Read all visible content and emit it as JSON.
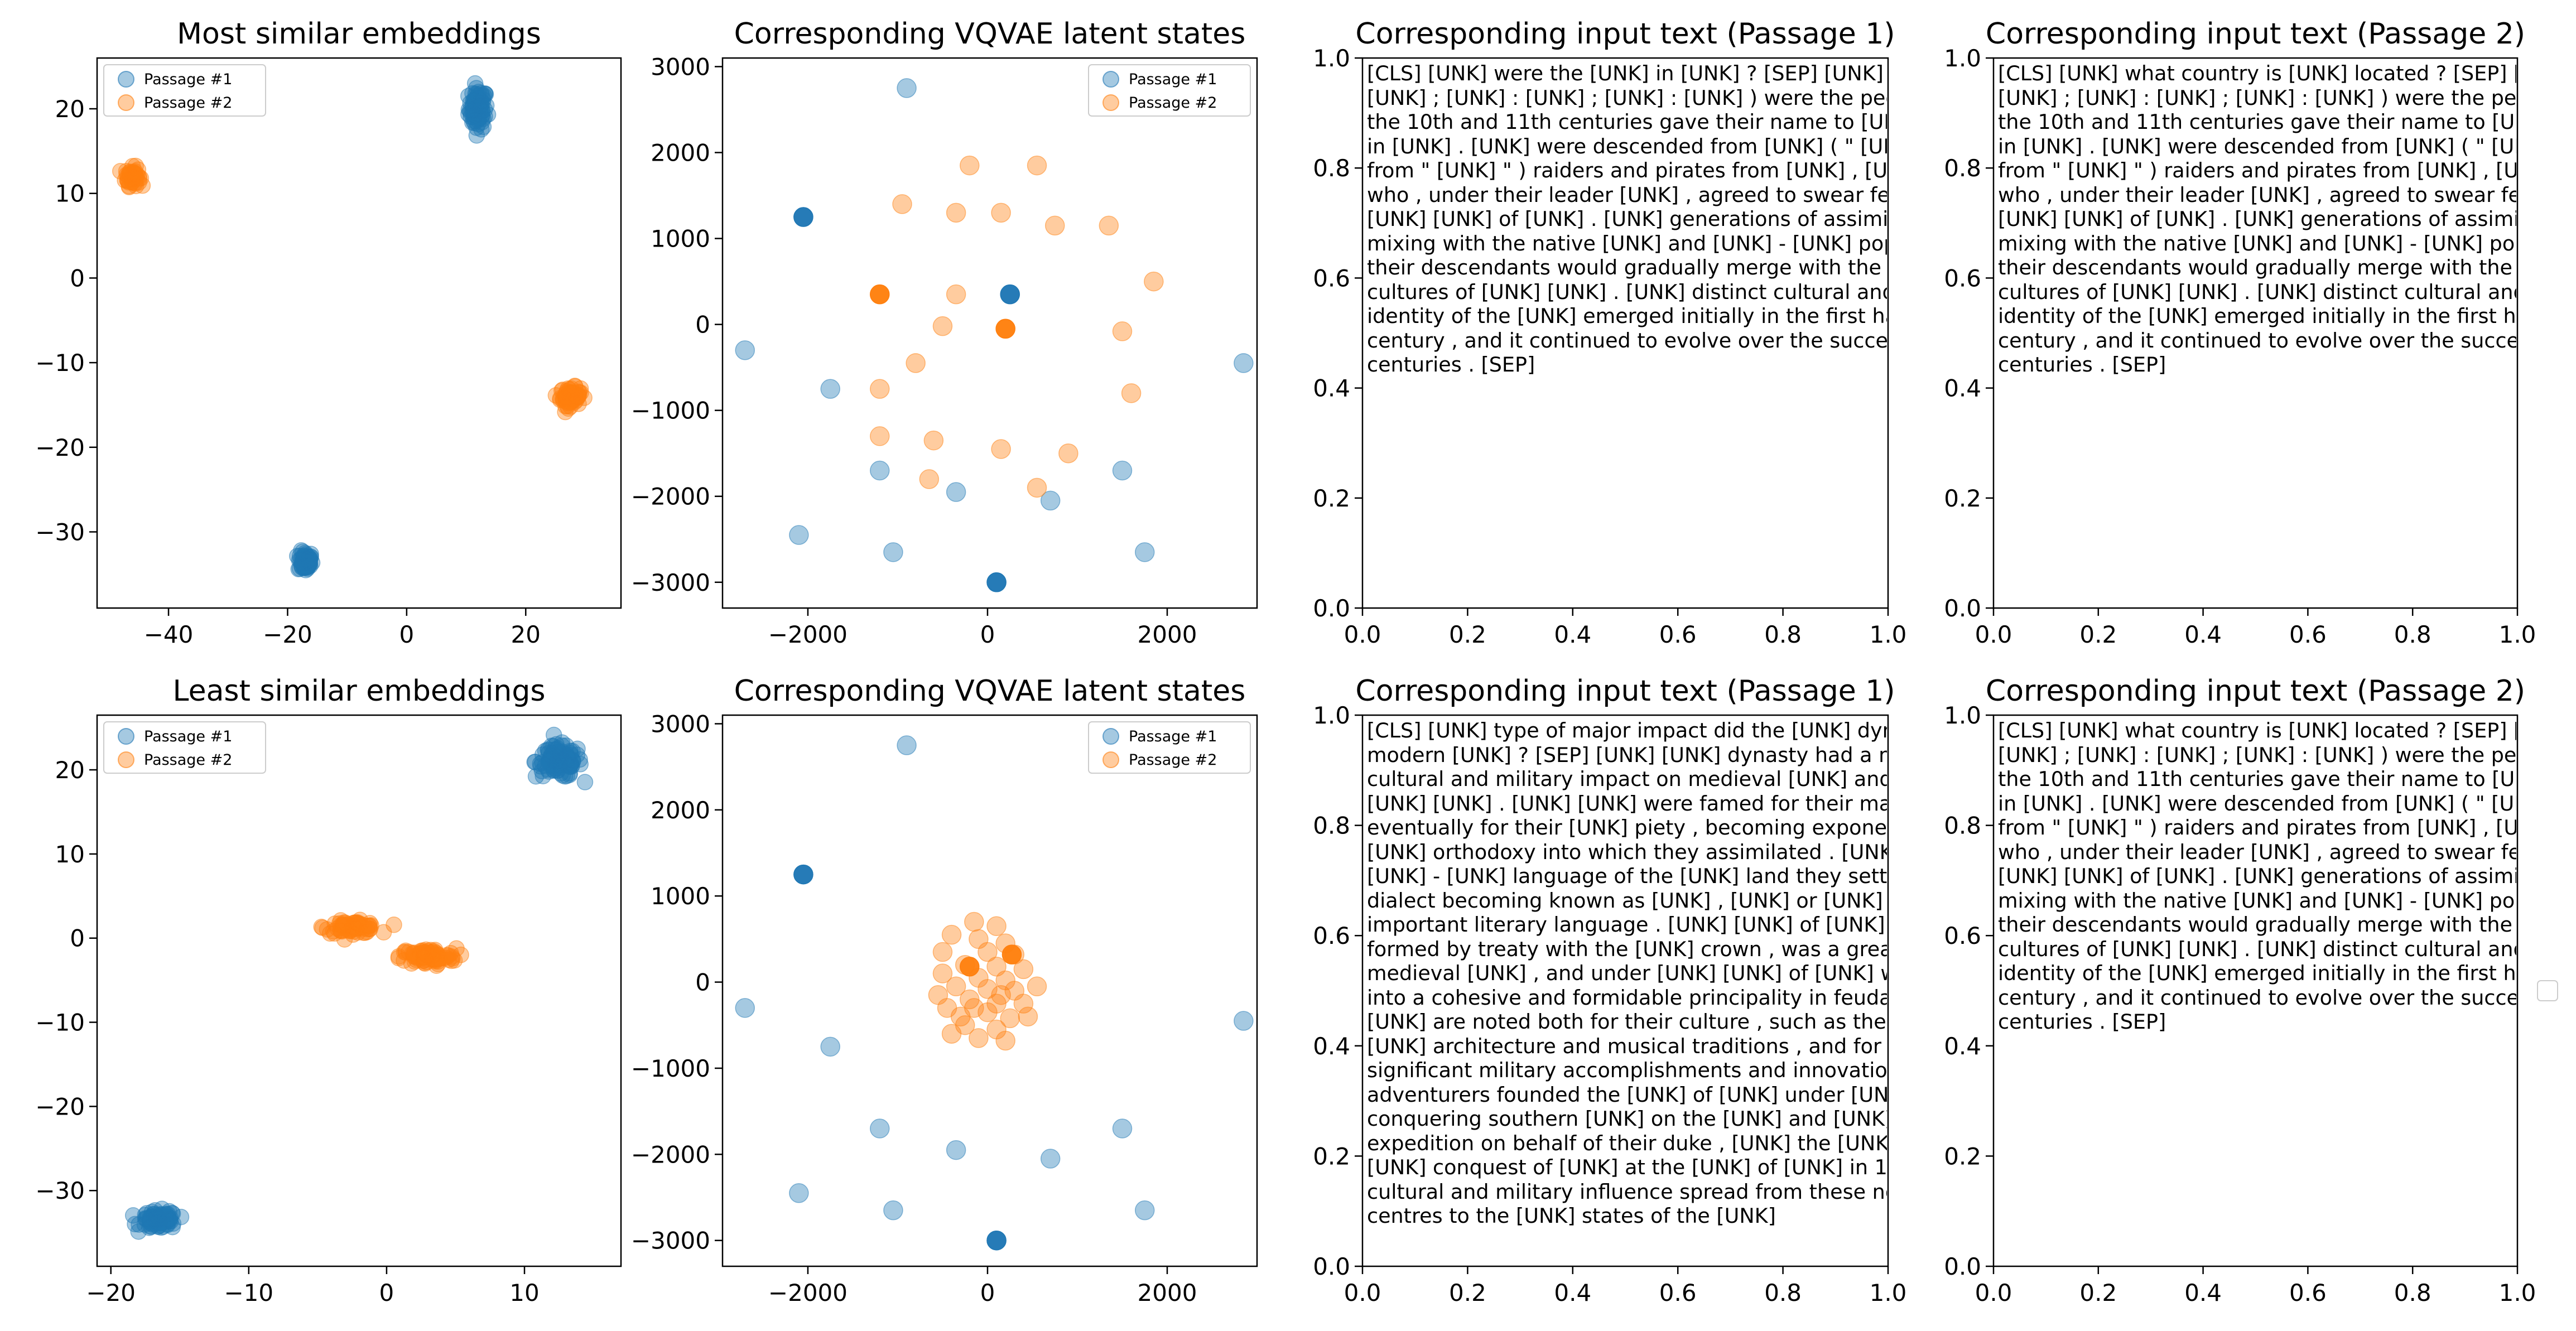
{
  "figure": {
    "colors": {
      "passage1": "#1f77b4",
      "passage2": "#ff7f0e"
    },
    "rows": [
      {
        "embed": {
          "title": "Most similar embeddings",
          "xlim": [
            -52,
            36
          ],
          "ylim": [
            -39,
            26
          ],
          "xticks": [
            -40,
            -20,
            0,
            20
          ],
          "yticks": [
            -30,
            -20,
            -10,
            0,
            10,
            20
          ],
          "legend": [
            "Passage #1",
            "Passage #2"
          ],
          "legend_loc": "upper-left",
          "clusters": [
            {
              "series": 0,
              "cx": 12,
              "cy": 20,
              "sx": 1.3,
              "sy": 2.0,
              "n": 80
            },
            {
              "series": 0,
              "cx": -17,
              "cy": -33.5,
              "sx": 1.0,
              "sy": 1.0,
              "n": 70
            },
            {
              "series": 1,
              "cx": -46,
              "cy": 12,
              "sx": 1.0,
              "sy": 0.9,
              "n": 60
            },
            {
              "series": 1,
              "cx": 27.5,
              "cy": -14,
              "sx": 1.4,
              "sy": 0.9,
              "n": 80
            }
          ]
        },
        "latent": {
          "title": "Corresponding VQVAE latent states",
          "xlim": [
            -2950,
            3000
          ],
          "ylim": [
            -3300,
            3100
          ],
          "xticks": [
            -2000,
            0,
            2000
          ],
          "yticks": [
            -3000,
            -2000,
            -1000,
            0,
            1000,
            2000,
            3000
          ],
          "legend": [
            "Passage #1",
            "Passage #2"
          ],
          "legend_loc": "upper-right",
          "series": [
            {
              "name": "Passage #1",
              "points": [
                [
                  -900,
                  2750
                ],
                [
                  -2050,
                  1250
                ],
                [
                  250,
                  350
                ],
                [
                  -2700,
                  -300
                ],
                [
                  -1750,
                  -750
                ],
                [
                  2850,
                  -450
                ],
                [
                  -1200,
                  -1700
                ],
                [
                  -350,
                  -1950
                ],
                [
                  -2100,
                  -2450
                ],
                [
                  -1050,
                  -2650
                ],
                [
                  100,
                  -3000
                ],
                [
                  700,
                  -2050
                ],
                [
                  1500,
                  -1700
                ],
                [
                  1750,
                  -2650
                ]
              ]
            },
            {
              "name": "Passage #2",
              "points": [
                [
                  -200,
                  1850
                ],
                [
                  550,
                  1850
                ],
                [
                  -950,
                  1400
                ],
                [
                  -350,
                  1300
                ],
                [
                  150,
                  1300
                ],
                [
                  750,
                  1150
                ],
                [
                  1350,
                  1150
                ],
                [
                  -1200,
                  350
                ],
                [
                  -350,
                  350
                ],
                [
                  200,
                  -50
                ],
                [
                  -500,
                  -20
                ],
                [
                  1850,
                  500
                ],
                [
                  1500,
                  -80
                ],
                [
                  -800,
                  -450
                ],
                [
                  -1200,
                  -750
                ],
                [
                  1600,
                  -800
                ],
                [
                  -1200,
                  -1300
                ],
                [
                  -600,
                  -1350
                ],
                [
                  150,
                  -1450
                ],
                [
                  900,
                  -1500
                ],
                [
                  -650,
                  -1800
                ],
                [
                  550,
                  -1900
                ]
              ]
            }
          ],
          "dark_points": [
            {
              "series": 0,
              "x": -2050,
              "y": 1250
            },
            {
              "series": 0,
              "x": 250,
              "y": 350
            },
            {
              "series": 0,
              "x": 100,
              "y": -3000
            },
            {
              "series": 1,
              "x": -1200,
              "y": 350
            },
            {
              "series": 1,
              "x": 200,
              "y": -50
            }
          ]
        },
        "text1": {
          "title": "Corresponding input text (Passage 1)",
          "xlim": [
            0,
            1
          ],
          "ylim": [
            0,
            1
          ],
          "ticks": [
            0.0,
            0.2,
            0.4,
            0.6,
            0.8,
            1.0
          ],
          "text": "[CLS] [UNK] were the [UNK] in [UNK] ? [SEP] [UNK] ( [UNK] : [UNK] ; [UNK] : [UNK] ; [UNK] : [UNK] ) were the people who in the 10th and 11th centuries gave their name to [UNK] , a region in [UNK] . [UNK] were descended from [UNK] ( \" [UNK] \" comes from \" [UNK] \" ) raiders and pirates from [UNK] , [UNK] and [UNK] who , under their leader [UNK] , agreed to swear fealty to [UNK] [UNK] [UNK] of [UNK] . [UNK] generations of assimilation and mixing with the native [UNK] and [UNK] - [UNK] populations , their descendants would gradually merge with the [UNK] - based cultures of [UNK] [UNK] . [UNK] distinct cultural and ethnic identity of the [UNK] emerged initially in the first half of the 10th century , and it continued to evolve over the succeeding centuries . [SEP]"
        },
        "text2": {
          "title": "Corresponding input text (Passage 2)",
          "xlim": [
            0,
            1
          ],
          "ylim": [
            0,
            1
          ],
          "ticks": [
            0.0,
            0.2,
            0.4,
            0.6,
            0.8,
            1.0
          ],
          "text": "[CLS] [UNK] what country is [UNK] located ? [SEP] [UNK] ( [UNK] : [UNK] ; [UNK] : [UNK] ; [UNK] : [UNK] ) were the people who in the 10th and 11th centuries gave their name to [UNK] , a region in [UNK] . [UNK] were descended from [UNK] ( \" [UNK] \" comes from \" [UNK] \" ) raiders and pirates from [UNK] , [UNK] and [UNK] who , under their leader [UNK] , agreed to swear fealty to [UNK] [UNK] [UNK] of [UNK] . [UNK] generations of assimilation and mixing with the native [UNK] and [UNK] - [UNK] populations , their descendants would gradually merge with the [UNK] - based cultures of [UNK] [UNK] . [UNK] distinct cultural and ethnic identity of the [UNK] emerged initially in the first half of the 10th century , and it continued to evolve over the succeeding centuries . [SEP]"
        }
      },
      {
        "embed": {
          "title": "Least similar embeddings",
          "xlim": [
            -21,
            17
          ],
          "ylim": [
            -39,
            26.5
          ],
          "xticks": [
            -20,
            -10,
            0,
            10
          ],
          "yticks": [
            -30,
            -20,
            -10,
            0,
            10,
            20
          ],
          "legend": [
            "Passage #1",
            "Passage #2"
          ],
          "legend_loc": "upper-left",
          "clusters": [
            {
              "series": 0,
              "cx": 12.5,
              "cy": 21,
              "sx": 1.4,
              "sy": 1.6,
              "n": 110
            },
            {
              "series": 0,
              "cx": -16.5,
              "cy": -33.5,
              "sx": 1.1,
              "sy": 0.9,
              "n": 80
            },
            {
              "series": 1,
              "cx": -2.5,
              "cy": 1.3,
              "sx": 1.6,
              "sy": 0.6,
              "n": 70
            },
            {
              "series": 1,
              "cx": 3,
              "cy": -2.2,
              "sx": 1.7,
              "sy": 0.8,
              "n": 90
            }
          ]
        },
        "latent": {
          "title": "Corresponding VQVAE latent states",
          "xlim": [
            -2950,
            3000
          ],
          "ylim": [
            -3300,
            3100
          ],
          "xticks": [
            -2000,
            0,
            2000
          ],
          "yticks": [
            -3000,
            -2000,
            -1000,
            0,
            1000,
            2000,
            3000
          ],
          "legend": [
            "Passage #1",
            "Passage #2"
          ],
          "legend_loc": "upper-right",
          "series": [
            {
              "name": "Passage #1",
              "points": [
                [
                  -900,
                  2750
                ],
                [
                  -2050,
                  1250
                ],
                [
                  -2700,
                  -300
                ],
                [
                  -1750,
                  -750
                ],
                [
                  2850,
                  -450
                ],
                [
                  -1200,
                  -1700
                ],
                [
                  -350,
                  -1950
                ],
                [
                  -2100,
                  -2450
                ],
                [
                  -1050,
                  -2650
                ],
                [
                  100,
                  -3000
                ],
                [
                  700,
                  -2050
                ],
                [
                  1500,
                  -1700
                ],
                [
                  1750,
                  -2650
                ]
              ]
            },
            {
              "name": "Passage #2",
              "points": [
                [
                  -150,
                  700
                ],
                [
                  100,
                  650
                ],
                [
                  -400,
                  550
                ],
                [
                  -100,
                  500
                ],
                [
                  200,
                  450
                ],
                [
                  -500,
                  350
                ],
                [
                  0,
                  350
                ],
                [
                  300,
                  320
                ],
                [
                  -250,
                  200
                ],
                [
                  100,
                  180
                ],
                [
                  400,
                  150
                ],
                [
                  -500,
                  100
                ],
                [
                  -100,
                  50
                ],
                [
                  200,
                  20
                ],
                [
                  -350,
                  -50
                ],
                [
                  0,
                  -80
                ],
                [
                  300,
                  -100
                ],
                [
                  -200,
                  -200
                ],
                [
                  100,
                  -250
                ],
                [
                  400,
                  -250
                ],
                [
                  -450,
                  -300
                ],
                [
                  0,
                  -350
                ],
                [
                  250,
                  -420
                ],
                [
                  -250,
                  -500
                ],
                [
                  100,
                  -550
                ],
                [
                  -400,
                  -600
                ],
                [
                  -100,
                  -650
                ],
                [
                  200,
                  -680
                ],
                [
                  -550,
                  -150
                ],
                [
                  550,
                  -50
                ],
                [
                  450,
                  -400
                ],
                [
                  -300,
                  -400
                ],
                [
                  150,
                  -150
                ],
                [
                  -150,
                  -300
                ]
              ]
            }
          ],
          "dark_points": [
            {
              "series": 0,
              "x": -2050,
              "y": 1250
            },
            {
              "series": 0,
              "x": 100,
              "y": -3000
            },
            {
              "series": 1,
              "x": -200,
              "y": 180
            },
            {
              "series": 1,
              "x": 270,
              "y": 320
            }
          ]
        },
        "text1": {
          "title": "Corresponding input text (Passage 1)",
          "xlim": [
            0,
            1
          ],
          "ylim": [
            0,
            1
          ],
          "ticks": [
            0.0,
            0.2,
            0.4,
            0.6,
            0.8,
            1.0
          ],
          "text": "[CLS] [UNK] type of major impact did the [UNK] dynasty have on modern [UNK] ? [SEP] [UNK] [UNK] dynasty had a major political , cultural and military impact on medieval [UNK] and even the [UNK] [UNK] . [UNK] [UNK] were famed for their martial spirit and eventually for their [UNK] piety , becoming exponents of the [UNK] orthodoxy into which they assimilated . [UNK] adopted the [UNK] - [UNK] language of the [UNK] land they settled , their dialect becoming known as [UNK] , [UNK] or [UNK] [UNK] , an important literary language . [UNK] [UNK] of [UNK] , which they formed by treaty with the [UNK] crown , was a great fief of medieval [UNK] , and under [UNK] [UNK] of [UNK] was forged into a cohesive and formidable principality in feudal tenure . [UNK] are noted both for their culture , such as their unique [UNK] architecture and musical traditions , and for their significant military accomplishments and innovations . [UNK] adventurers founded the [UNK] of [UNK] under [UNK] [UNK] after conquering southern [UNK] on the [UNK] and [UNK] , and an expedition on behalf of their duke , [UNK] the [UNK] , led to the [UNK] conquest of [UNK] at the [UNK] of [UNK] in 1066 . [UNK] cultural and military influence spread from these new [UNK] centres to the [UNK] states of the [UNK]"
        },
        "text2": {
          "title": "Corresponding input text (Passage 2)",
          "xlim": [
            0,
            1
          ],
          "ylim": [
            0,
            1
          ],
          "ticks": [
            0.0,
            0.2,
            0.4,
            0.6,
            0.8,
            1.0
          ],
          "text": "[CLS] [UNK] what country is [UNK] located ? [SEP] [UNK] ( [UNK] : [UNK] ; [UNK] : [UNK] ; [UNK] : [UNK] ) were the people who in the 10th and 11th centuries gave their name to [UNK] , a region in [UNK] . [UNK] were descended from [UNK] ( \" [UNK] \" comes from \" [UNK] \" ) raiders and pirates from [UNK] , [UNK] and [UNK] who , under their leader [UNK] , agreed to swear fealty to [UNK] [UNK] [UNK] of [UNK] . [UNK] generations of assimilation and mixing with the native [UNK] and [UNK] - [UNK] populations , their descendants would gradually merge with the [UNK] - based cultures of [UNK] [UNK] . [UNK] distinct cultural and ethnic identity of the [UNK] emerged initially in the first half of the 10th century , and it continued to evolve over the succeeding centuries . [SEP]",
          "empty_legend": true
        }
      }
    ]
  }
}
